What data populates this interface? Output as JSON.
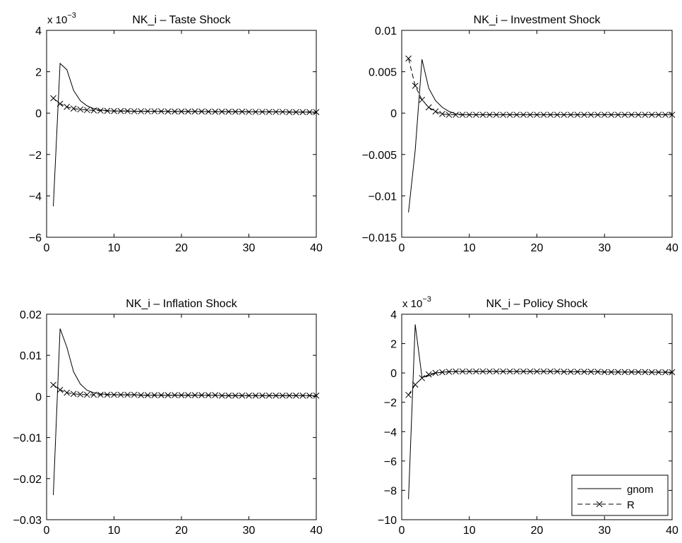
{
  "chart_data": [
    {
      "type": "line",
      "title": "NK_i – Taste Shock",
      "xlabel": "",
      "ylabel": "",
      "xlim": [
        0,
        40
      ],
      "ylim": [
        -6,
        4
      ],
      "xticks": [
        "0",
        "10",
        "20",
        "30",
        "40"
      ],
      "yticks": [
        "−6",
        "−4",
        "−2",
        "0",
        "2",
        "4"
      ],
      "y_exponent": {
        "base": "x 10",
        "power": "−3"
      },
      "x": [
        1,
        2,
        3,
        4,
        5,
        6,
        7,
        8,
        9,
        10,
        11,
        12,
        13,
        14,
        15,
        16,
        17,
        18,
        19,
        20,
        21,
        22,
        23,
        24,
        25,
        26,
        27,
        28,
        29,
        30,
        31,
        32,
        33,
        34,
        35,
        36,
        37,
        38,
        39,
        40
      ],
      "series": [
        {
          "values": [
            -4.5,
            2.4,
            2.1,
            1.1,
            0.6,
            0.35,
            0.22,
            0.15,
            0.12,
            0.1,
            0.1,
            0.1,
            0.09,
            0.09,
            0.09,
            0.09,
            0.09,
            0.08,
            0.08,
            0.08,
            0.08,
            0.08,
            0.08,
            0.07,
            0.07,
            0.07,
            0.07,
            0.07,
            0.07,
            0.06,
            0.06,
            0.06,
            0.06,
            0.06,
            0.06,
            0.05,
            0.05,
            0.05,
            0.05,
            0.05
          ]
        },
        {
          "values": [
            0.72,
            0.45,
            0.3,
            0.22,
            0.18,
            0.15,
            0.13,
            0.12,
            0.11,
            0.1,
            0.1,
            0.1,
            0.09,
            0.09,
            0.09,
            0.09,
            0.09,
            0.08,
            0.08,
            0.08,
            0.08,
            0.08,
            0.08,
            0.07,
            0.07,
            0.07,
            0.07,
            0.07,
            0.07,
            0.06,
            0.06,
            0.06,
            0.06,
            0.06,
            0.06,
            0.05,
            0.05,
            0.05,
            0.05,
            0.05
          ]
        }
      ]
    },
    {
      "type": "line",
      "title": "NK_i – Investment Shock",
      "xlabel": "",
      "ylabel": "",
      "xlim": [
        0,
        40
      ],
      "ylim": [
        -0.015,
        0.01
      ],
      "xticks": [
        "0",
        "10",
        "20",
        "30",
        "40"
      ],
      "yticks": [
        "−0.015",
        "−0.01",
        "−0.005",
        "0",
        "0.005",
        "0.01"
      ],
      "x": [
        1,
        2,
        3,
        4,
        5,
        6,
        7,
        8,
        9,
        10,
        11,
        12,
        13,
        14,
        15,
        16,
        17,
        18,
        19,
        20,
        21,
        22,
        23,
        24,
        25,
        26,
        27,
        28,
        29,
        30,
        31,
        32,
        33,
        34,
        35,
        36,
        37,
        38,
        39,
        40
      ],
      "series": [
        {
          "values": [
            -0.012,
            -0.0045,
            0.0065,
            0.003,
            0.0015,
            0.0007,
            0.0002,
            -0.0001,
            -0.0002,
            -0.0002,
            -0.0002,
            -0.0002,
            -0.0002,
            -0.0002,
            -0.0002,
            -0.0002,
            -0.0002,
            -0.0002,
            -0.0002,
            -0.0002,
            -0.0002,
            -0.0002,
            -0.0002,
            -0.0002,
            -0.0002,
            -0.0002,
            -0.0002,
            -0.0002,
            -0.0002,
            -0.0002,
            -0.0002,
            -0.0002,
            -0.0002,
            -0.0002,
            -0.0002,
            -0.0002,
            -0.0002,
            -0.0002,
            -0.0002,
            -0.0002
          ]
        },
        {
          "values": [
            0.0066,
            0.0033,
            0.0016,
            0.0007,
            0.0002,
            -0.0001,
            -0.0002,
            -0.0002,
            -0.0002,
            -0.0002,
            -0.0002,
            -0.0002,
            -0.0002,
            -0.0002,
            -0.0002,
            -0.0002,
            -0.0002,
            -0.0002,
            -0.0002,
            -0.0002,
            -0.0002,
            -0.0002,
            -0.0002,
            -0.0002,
            -0.0002,
            -0.0002,
            -0.0002,
            -0.0002,
            -0.0002,
            -0.0002,
            -0.0002,
            -0.0002,
            -0.0002,
            -0.0002,
            -0.0002,
            -0.0002,
            -0.0002,
            -0.0002,
            -0.0002,
            -0.0002
          ]
        }
      ]
    },
    {
      "type": "line",
      "title": "NK_i – Inflation Shock",
      "xlabel": "",
      "ylabel": "",
      "xlim": [
        0,
        40
      ],
      "ylim": [
        -0.03,
        0.02
      ],
      "xticks": [
        "0",
        "10",
        "20",
        "30",
        "40"
      ],
      "yticks": [
        "−0.03",
        "−0.02",
        "−0.01",
        "0",
        "0.01",
        "0.02"
      ],
      "x": [
        1,
        2,
        3,
        4,
        5,
        6,
        7,
        8,
        9,
        10,
        11,
        12,
        13,
        14,
        15,
        16,
        17,
        18,
        19,
        20,
        21,
        22,
        23,
        24,
        25,
        26,
        27,
        28,
        29,
        30,
        31,
        32,
        33,
        34,
        35,
        36,
        37,
        38,
        39,
        40
      ],
      "series": [
        {
          "values": [
            -0.024,
            0.0165,
            0.012,
            0.006,
            0.003,
            0.0015,
            0.0009,
            0.0006,
            0.0005,
            0.0004,
            0.0004,
            0.0004,
            0.0004,
            0.0003,
            0.0003,
            0.0003,
            0.0003,
            0.0003,
            0.0003,
            0.0003,
            0.0003,
            0.0003,
            0.0003,
            0.0003,
            0.0003,
            0.0002,
            0.0002,
            0.0002,
            0.0002,
            0.0002,
            0.0002,
            0.0002,
            0.0002,
            0.0002,
            0.0002,
            0.0002,
            0.0002,
            0.0002,
            0.0002,
            0.0002
          ]
        },
        {
          "values": [
            0.0028,
            0.0016,
            0.0009,
            0.0006,
            0.0005,
            0.0004,
            0.0004,
            0.0004,
            0.0004,
            0.0004,
            0.0004,
            0.0004,
            0.0004,
            0.0003,
            0.0003,
            0.0003,
            0.0003,
            0.0003,
            0.0003,
            0.0003,
            0.0003,
            0.0003,
            0.0003,
            0.0003,
            0.0003,
            0.0002,
            0.0002,
            0.0002,
            0.0002,
            0.0002,
            0.0002,
            0.0002,
            0.0002,
            0.0002,
            0.0002,
            0.0002,
            0.0002,
            0.0002,
            0.0002,
            0.0002
          ]
        }
      ]
    },
    {
      "type": "line",
      "title": "NK_i – Policy Shock",
      "xlabel": "",
      "ylabel": "",
      "xlim": [
        0,
        40
      ],
      "ylim": [
        -10,
        4
      ],
      "xticks": [
        "0",
        "10",
        "20",
        "30",
        "40"
      ],
      "yticks": [
        "−10",
        "−8",
        "−6",
        "−4",
        "−2",
        "0",
        "2",
        "4"
      ],
      "y_exponent": {
        "base": "x 10",
        "power": "−3"
      },
      "legend": {
        "position": "bottom-right",
        "entries": [
          "gnom",
          "R"
        ]
      },
      "x": [
        1,
        2,
        3,
        4,
        5,
        6,
        7,
        8,
        9,
        10,
        11,
        12,
        13,
        14,
        15,
        16,
        17,
        18,
        19,
        20,
        21,
        22,
        23,
        24,
        25,
        26,
        27,
        28,
        29,
        30,
        31,
        32,
        33,
        34,
        35,
        36,
        37,
        38,
        39,
        40
      ],
      "series": [
        {
          "name": "gnom",
          "style": "solid",
          "values": [
            -8.6,
            3.3,
            -0.3,
            -0.2,
            0,
            0.05,
            0.08,
            0.1,
            0.1,
            0.1,
            0.1,
            0.1,
            0.1,
            0.1,
            0.1,
            0.1,
            0.1,
            0.1,
            0.1,
            0.1,
            0.1,
            0.1,
            0.1,
            0.08,
            0.08,
            0.08,
            0.08,
            0.08,
            0.08,
            0.06,
            0.06,
            0.06,
            0.06,
            0.06,
            0.06,
            0.06,
            0.05,
            0.05,
            0.05,
            0.05
          ]
        },
        {
          "name": "R",
          "style": "dashed-x",
          "values": [
            -1.5,
            -0.8,
            -0.35,
            -0.1,
            0,
            0.05,
            0.08,
            0.1,
            0.1,
            0.1,
            0.1,
            0.1,
            0.1,
            0.1,
            0.1,
            0.1,
            0.1,
            0.1,
            0.1,
            0.1,
            0.1,
            0.1,
            0.1,
            0.08,
            0.08,
            0.08,
            0.08,
            0.08,
            0.08,
            0.06,
            0.06,
            0.06,
            0.06,
            0.06,
            0.06,
            0.06,
            0.05,
            0.05,
            0.05,
            0.05
          ]
        }
      ]
    }
  ]
}
